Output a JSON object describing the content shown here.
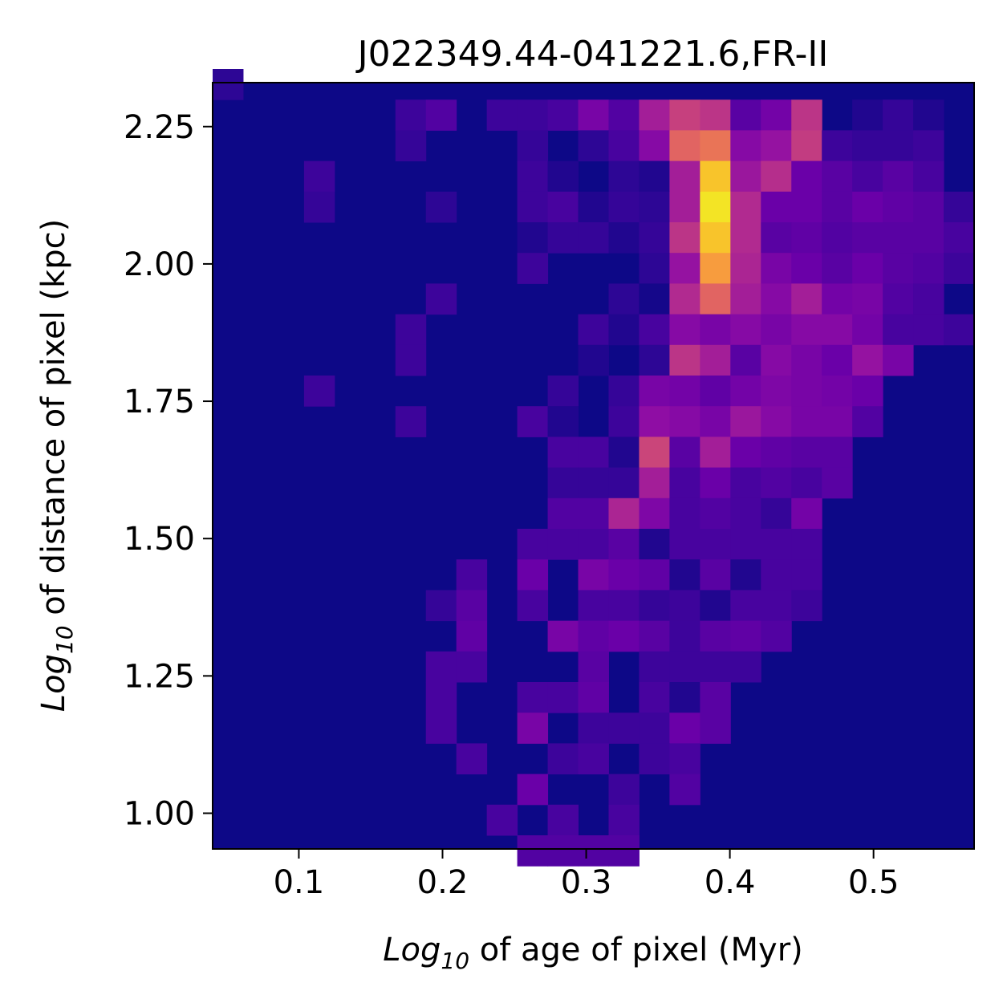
{
  "chart_data": {
    "type": "heatmap",
    "title": "J022349.44-041221.6,FR-II",
    "xlabel_prefix": "Log",
    "xlabel_sub": "10",
    "xlabel_rest": " of age of pixel (Myr)",
    "ylabel_prefix": "Log",
    "ylabel_sub": "10",
    "ylabel_rest": " of distance of pixel (kpc)",
    "xlim": [
      0.04,
      0.57
    ],
    "ylim": [
      0.935,
      2.33
    ],
    "xticks": [
      0.1,
      0.2,
      0.3,
      0.4,
      0.5
    ],
    "xtick_labels": [
      "0.1",
      "0.2",
      "0.3",
      "0.4",
      "0.5"
    ],
    "yticks": [
      1.0,
      1.25,
      1.5,
      1.75,
      2.0,
      2.25
    ],
    "ytick_labels": [
      "1.00",
      "1.25",
      "1.50",
      "1.75",
      "2.00",
      "2.25"
    ],
    "colormap": "plasma",
    "background_color": "#0d0887",
    "n_cols": 25,
    "n_rows": 25,
    "cells": [
      [
        0,
        24,
        0.08
      ],
      [
        6,
        23,
        0.12
      ],
      [
        7,
        23,
        0.18
      ],
      [
        9,
        23,
        0.12
      ],
      [
        10,
        23,
        0.12
      ],
      [
        11,
        23,
        0.15
      ],
      [
        12,
        23,
        0.3
      ],
      [
        13,
        23,
        0.18
      ],
      [
        14,
        23,
        0.45
      ],
      [
        15,
        23,
        0.6
      ],
      [
        16,
        23,
        0.55
      ],
      [
        17,
        23,
        0.2
      ],
      [
        18,
        23,
        0.28
      ],
      [
        19,
        23,
        0.55
      ],
      [
        21,
        23,
        0.05
      ],
      [
        22,
        23,
        0.1
      ],
      [
        23,
        23,
        0.05
      ],
      [
        6,
        22,
        0.1
      ],
      [
        10,
        22,
        0.1
      ],
      [
        12,
        22,
        0.08
      ],
      [
        13,
        22,
        0.15
      ],
      [
        14,
        22,
        0.35
      ],
      [
        15,
        22,
        0.75
      ],
      [
        16,
        22,
        0.8
      ],
      [
        17,
        22,
        0.35
      ],
      [
        18,
        22,
        0.4
      ],
      [
        19,
        22,
        0.58
      ],
      [
        20,
        22,
        0.12
      ],
      [
        21,
        22,
        0.1
      ],
      [
        22,
        22,
        0.1
      ],
      [
        23,
        22,
        0.12
      ],
      [
        3,
        21,
        0.12
      ],
      [
        10,
        21,
        0.12
      ],
      [
        11,
        21,
        0.05
      ],
      [
        13,
        21,
        0.08
      ],
      [
        14,
        21,
        0.05
      ],
      [
        15,
        21,
        0.45
      ],
      [
        16,
        21,
        0.95
      ],
      [
        17,
        21,
        0.42
      ],
      [
        18,
        21,
        0.52
      ],
      [
        19,
        21,
        0.25
      ],
      [
        20,
        21,
        0.2
      ],
      [
        21,
        21,
        0.15
      ],
      [
        22,
        21,
        0.2
      ],
      [
        23,
        21,
        0.15
      ],
      [
        3,
        20,
        0.1
      ],
      [
        7,
        20,
        0.08
      ],
      [
        10,
        20,
        0.12
      ],
      [
        11,
        20,
        0.15
      ],
      [
        12,
        20,
        0.05
      ],
      [
        13,
        20,
        0.1
      ],
      [
        14,
        20,
        0.08
      ],
      [
        15,
        20,
        0.45
      ],
      [
        16,
        20,
        0.98
      ],
      [
        17,
        20,
        0.5
      ],
      [
        18,
        20,
        0.25
      ],
      [
        19,
        20,
        0.25
      ],
      [
        20,
        20,
        0.2
      ],
      [
        21,
        20,
        0.25
      ],
      [
        22,
        20,
        0.22
      ],
      [
        23,
        20,
        0.2
      ],
      [
        24,
        20,
        0.1
      ],
      [
        10,
        19,
        0.05
      ],
      [
        11,
        19,
        0.1
      ],
      [
        12,
        19,
        0.1
      ],
      [
        13,
        19,
        0.05
      ],
      [
        14,
        19,
        0.1
      ],
      [
        15,
        19,
        0.55
      ],
      [
        16,
        19,
        0.95
      ],
      [
        17,
        19,
        0.5
      ],
      [
        18,
        19,
        0.2
      ],
      [
        19,
        19,
        0.22
      ],
      [
        20,
        19,
        0.18
      ],
      [
        21,
        19,
        0.2
      ],
      [
        22,
        19,
        0.2
      ],
      [
        23,
        19,
        0.2
      ],
      [
        24,
        19,
        0.15
      ],
      [
        10,
        18,
        0.12
      ],
      [
        14,
        18,
        0.08
      ],
      [
        15,
        18,
        0.4
      ],
      [
        16,
        18,
        0.9
      ],
      [
        17,
        18,
        0.48
      ],
      [
        18,
        18,
        0.3
      ],
      [
        19,
        18,
        0.25
      ],
      [
        20,
        18,
        0.2
      ],
      [
        21,
        18,
        0.25
      ],
      [
        22,
        18,
        0.2
      ],
      [
        23,
        18,
        0.18
      ],
      [
        24,
        18,
        0.12
      ],
      [
        7,
        17,
        0.12
      ],
      [
        13,
        17,
        0.08
      ],
      [
        14,
        17,
        0.02
      ],
      [
        15,
        17,
        0.5
      ],
      [
        16,
        17,
        0.75
      ],
      [
        17,
        17,
        0.45
      ],
      [
        18,
        17,
        0.35
      ],
      [
        19,
        17,
        0.45
      ],
      [
        20,
        17,
        0.28
      ],
      [
        21,
        17,
        0.3
      ],
      [
        22,
        17,
        0.18
      ],
      [
        23,
        17,
        0.15
      ],
      [
        6,
        16,
        0.12
      ],
      [
        12,
        16,
        0.12
      ],
      [
        13,
        16,
        0.05
      ],
      [
        14,
        16,
        0.15
      ],
      [
        15,
        16,
        0.35
      ],
      [
        16,
        16,
        0.3
      ],
      [
        17,
        16,
        0.35
      ],
      [
        18,
        16,
        0.3
      ],
      [
        19,
        16,
        0.35
      ],
      [
        20,
        16,
        0.35
      ],
      [
        21,
        16,
        0.28
      ],
      [
        22,
        16,
        0.15
      ],
      [
        23,
        16,
        0.15
      ],
      [
        24,
        16,
        0.12
      ],
      [
        6,
        15,
        0.12
      ],
      [
        12,
        15,
        0.05
      ],
      [
        14,
        15,
        0.08
      ],
      [
        15,
        15,
        0.55
      ],
      [
        16,
        15,
        0.45
      ],
      [
        17,
        15,
        0.2
      ],
      [
        18,
        15,
        0.35
      ],
      [
        19,
        15,
        0.3
      ],
      [
        20,
        15,
        0.25
      ],
      [
        21,
        15,
        0.4
      ],
      [
        22,
        15,
        0.3
      ],
      [
        3,
        14,
        0.12
      ],
      [
        11,
        14,
        0.1
      ],
      [
        13,
        14,
        0.1
      ],
      [
        14,
        14,
        0.3
      ],
      [
        15,
        14,
        0.28
      ],
      [
        16,
        14,
        0.22
      ],
      [
        17,
        14,
        0.28
      ],
      [
        18,
        14,
        0.32
      ],
      [
        19,
        14,
        0.3
      ],
      [
        20,
        14,
        0.28
      ],
      [
        21,
        14,
        0.25
      ],
      [
        6,
        13,
        0.12
      ],
      [
        10,
        13,
        0.15
      ],
      [
        11,
        13,
        0.05
      ],
      [
        13,
        13,
        0.12
      ],
      [
        14,
        13,
        0.38
      ],
      [
        15,
        13,
        0.35
      ],
      [
        16,
        13,
        0.3
      ],
      [
        17,
        13,
        0.42
      ],
      [
        18,
        13,
        0.35
      ],
      [
        19,
        13,
        0.3
      ],
      [
        20,
        13,
        0.3
      ],
      [
        21,
        13,
        0.18
      ],
      [
        11,
        12,
        0.15
      ],
      [
        12,
        12,
        0.15
      ],
      [
        13,
        12,
        0.05
      ],
      [
        14,
        12,
        0.62
      ],
      [
        15,
        12,
        0.2
      ],
      [
        16,
        12,
        0.45
      ],
      [
        17,
        12,
        0.25
      ],
      [
        18,
        12,
        0.22
      ],
      [
        19,
        12,
        0.2
      ],
      [
        20,
        12,
        0.2
      ],
      [
        11,
        11,
        0.1
      ],
      [
        12,
        11,
        0.1
      ],
      [
        13,
        11,
        0.1
      ],
      [
        14,
        11,
        0.45
      ],
      [
        15,
        11,
        0.15
      ],
      [
        16,
        11,
        0.25
      ],
      [
        17,
        11,
        0.15
      ],
      [
        18,
        11,
        0.18
      ],
      [
        19,
        11,
        0.15
      ],
      [
        20,
        11,
        0.2
      ],
      [
        11,
        10,
        0.18
      ],
      [
        12,
        10,
        0.18
      ],
      [
        13,
        10,
        0.48
      ],
      [
        14,
        10,
        0.32
      ],
      [
        15,
        10,
        0.15
      ],
      [
        16,
        10,
        0.18
      ],
      [
        17,
        10,
        0.15
      ],
      [
        18,
        10,
        0.1
      ],
      [
        19,
        10,
        0.28
      ],
      [
        10,
        9,
        0.15
      ],
      [
        11,
        9,
        0.15
      ],
      [
        12,
        9,
        0.15
      ],
      [
        13,
        9,
        0.2
      ],
      [
        14,
        9,
        0.05
      ],
      [
        15,
        9,
        0.15
      ],
      [
        16,
        9,
        0.15
      ],
      [
        17,
        9,
        0.15
      ],
      [
        18,
        9,
        0.15
      ],
      [
        19,
        9,
        0.15
      ],
      [
        8,
        8,
        0.15
      ],
      [
        10,
        8,
        0.25
      ],
      [
        12,
        8,
        0.3
      ],
      [
        13,
        8,
        0.25
      ],
      [
        14,
        8,
        0.22
      ],
      [
        15,
        8,
        0.05
      ],
      [
        16,
        8,
        0.2
      ],
      [
        17,
        8,
        0.05
      ],
      [
        18,
        8,
        0.15
      ],
      [
        19,
        8,
        0.15
      ],
      [
        7,
        7,
        0.1
      ],
      [
        8,
        7,
        0.2
      ],
      [
        10,
        7,
        0.15
      ],
      [
        12,
        7,
        0.15
      ],
      [
        13,
        7,
        0.15
      ],
      [
        14,
        7,
        0.1
      ],
      [
        15,
        7,
        0.12
      ],
      [
        16,
        7,
        0.05
      ],
      [
        17,
        7,
        0.15
      ],
      [
        18,
        7,
        0.15
      ],
      [
        19,
        7,
        0.12
      ],
      [
        8,
        6,
        0.22
      ],
      [
        11,
        6,
        0.3
      ],
      [
        12,
        6,
        0.22
      ],
      [
        13,
        6,
        0.25
      ],
      [
        14,
        6,
        0.2
      ],
      [
        15,
        6,
        0.12
      ],
      [
        16,
        6,
        0.2
      ],
      [
        17,
        6,
        0.22
      ],
      [
        18,
        6,
        0.18
      ],
      [
        7,
        5,
        0.15
      ],
      [
        8,
        5,
        0.15
      ],
      [
        12,
        5,
        0.2
      ],
      [
        14,
        5,
        0.12
      ],
      [
        15,
        5,
        0.12
      ],
      [
        16,
        5,
        0.12
      ],
      [
        17,
        5,
        0.12
      ],
      [
        7,
        4,
        0.15
      ],
      [
        10,
        4,
        0.15
      ],
      [
        11,
        4,
        0.15
      ],
      [
        12,
        4,
        0.22
      ],
      [
        14,
        4,
        0.15
      ],
      [
        15,
        4,
        0.05
      ],
      [
        16,
        4,
        0.2
      ],
      [
        7,
        3,
        0.15
      ],
      [
        10,
        3,
        0.3
      ],
      [
        12,
        3,
        0.12
      ],
      [
        13,
        3,
        0.12
      ],
      [
        14,
        3,
        0.12
      ],
      [
        15,
        3,
        0.25
      ],
      [
        16,
        3,
        0.2
      ],
      [
        8,
        2,
        0.15
      ],
      [
        11,
        2,
        0.12
      ],
      [
        12,
        2,
        0.15
      ],
      [
        14,
        2,
        0.12
      ],
      [
        15,
        2,
        0.15
      ],
      [
        10,
        1,
        0.25
      ],
      [
        13,
        1,
        0.12
      ],
      [
        15,
        1,
        0.18
      ],
      [
        9,
        0,
        0.15
      ],
      [
        11,
        0,
        0.15
      ],
      [
        13,
        0,
        0.15
      ],
      [
        10,
        -1,
        0.18
      ],
      [
        11,
        -1,
        0.18
      ],
      [
        12,
        -1,
        0.18
      ],
      [
        13,
        -1,
        0.18
      ]
    ]
  }
}
